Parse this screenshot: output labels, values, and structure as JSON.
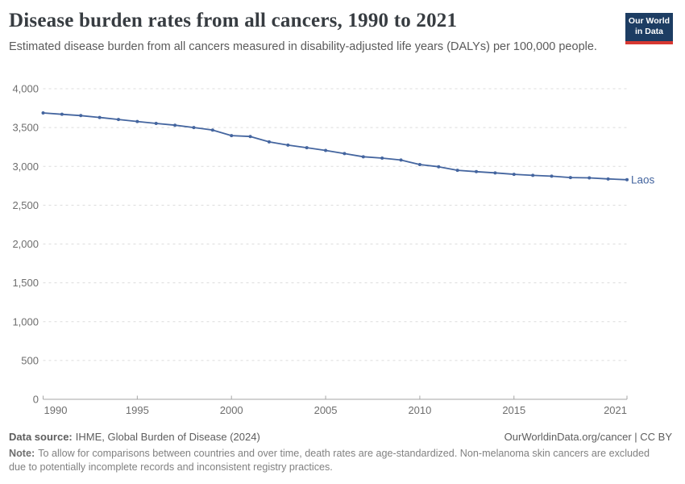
{
  "header": {
    "title": "Disease burden rates from all cancers, 1990 to 2021",
    "subtitle": "Estimated disease burden from all cancers measured in disability-adjusted life years (DALYs) per 100,000 people."
  },
  "logo": {
    "line1": "Our World",
    "line2": "in Data",
    "bg_color": "#1d3d63",
    "accent_color": "#d73832"
  },
  "chart_data": {
    "type": "line",
    "title": "Disease burden rates from all cancers, 1990 to 2021",
    "ylabel": "DALYs per 100,000 people",
    "xlabel": "",
    "x": [
      1990,
      1991,
      1992,
      1993,
      1994,
      1995,
      1996,
      1997,
      1998,
      1999,
      2000,
      2001,
      2002,
      2003,
      2004,
      2005,
      2006,
      2007,
      2008,
      2009,
      2010,
      2011,
      2012,
      2013,
      2014,
      2015,
      2016,
      2017,
      2018,
      2019,
      2020,
      2021
    ],
    "series": [
      {
        "name": "Laos",
        "color": "#44659f",
        "values": [
          3688,
          3671,
          3654,
          3630,
          3604,
          3578,
          3553,
          3530,
          3500,
          3468,
          3396,
          3385,
          3315,
          3274,
          3240,
          3205,
          3165,
          3124,
          3106,
          3082,
          3023,
          2995,
          2950,
          2932,
          2916,
          2898,
          2884,
          2874,
          2856,
          2852,
          2838,
          2828
        ]
      }
    ],
    "ylim": [
      0,
      4000
    ],
    "yticks": [
      0,
      500,
      1000,
      1500,
      2000,
      2500,
      3000,
      3500,
      4000
    ],
    "xticks": [
      1990,
      1995,
      2000,
      2005,
      2010,
      2015,
      2021
    ],
    "grid": "horizontal-dashed",
    "legend_position": "end-of-line-label",
    "axis_text_color": "#6e6e6e",
    "grid_color": "#dcdcdc",
    "axis_line_color": "#a6a6a6"
  },
  "footer": {
    "data_source_label": "Data source:",
    "data_source_value": "IHME, Global Burden of Disease (2024)",
    "link_text": "OurWorldinData.org/cancer | CC BY",
    "note_label": "Note:",
    "note_value": "To allow for comparisons between countries and over time, death rates are age-standardized. Non-melanoma skin cancers are excluded due to potentially incomplete records and inconsistent registry practices."
  }
}
